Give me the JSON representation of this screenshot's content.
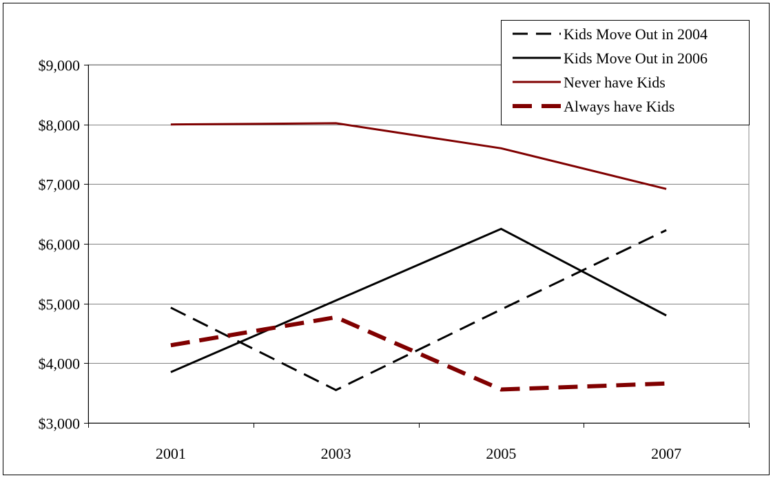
{
  "chart_data": {
    "type": "line",
    "title": "",
    "xlabel": "",
    "ylabel": "",
    "categories": [
      "2001",
      "2003",
      "2005",
      "2007"
    ],
    "ylim": [
      3000,
      9000
    ],
    "yticks": [
      3000,
      4000,
      5000,
      6000,
      7000,
      8000,
      9000
    ],
    "ytick_labels": [
      "$3,000",
      "$4,000",
      "$5,000",
      "$6,000",
      "$7,000",
      "$8,000",
      "$9,000"
    ],
    "grid": true,
    "legend_position": "top-right",
    "series": [
      {
        "name": "Kids Move Out in 2004",
        "values": [
          4930,
          3550,
          4900,
          6230
        ],
        "color": "#000000",
        "style": "dashed"
      },
      {
        "name": "Kids Move Out in 2006",
        "values": [
          3850,
          5050,
          6250,
          4800
        ],
        "color": "#000000",
        "style": "solid"
      },
      {
        "name": "Never have Kids",
        "values": [
          8000,
          8020,
          7600,
          6920
        ],
        "color": "#800000",
        "style": "solid"
      },
      {
        "name": "Always have Kids",
        "values": [
          4300,
          4770,
          3560,
          3660
        ],
        "color": "#800000",
        "style": "dashed-thick"
      }
    ]
  }
}
